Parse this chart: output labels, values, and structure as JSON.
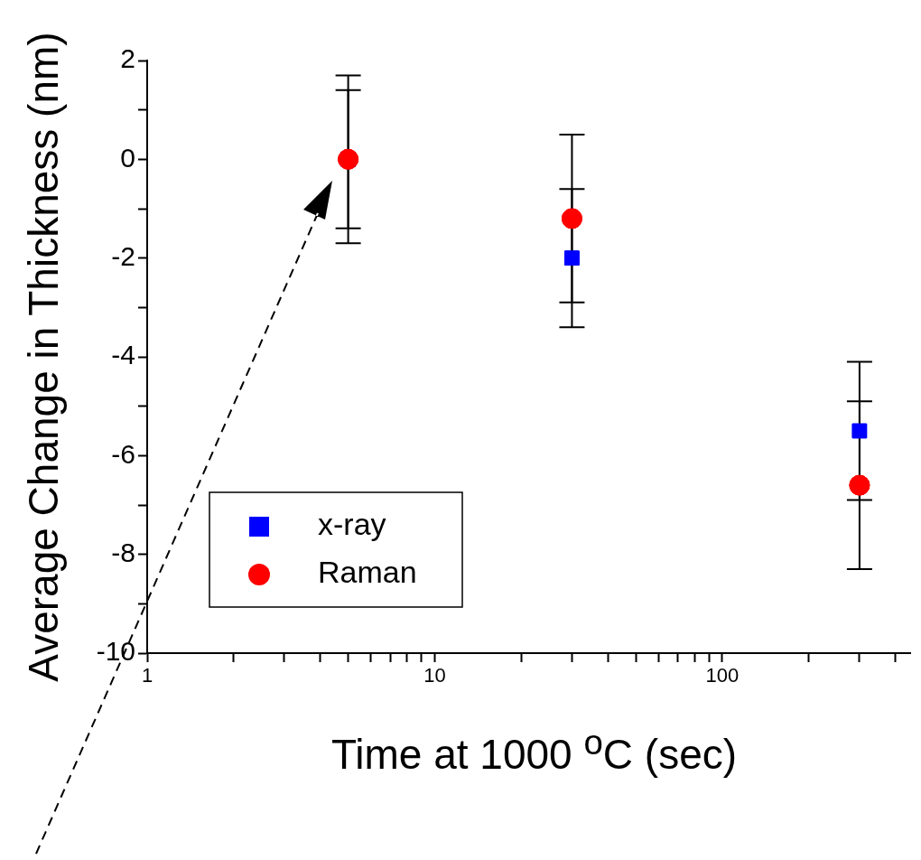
{
  "chart_data": {
    "type": "scatter",
    "xlabel": "Time at 1000 $^{o}$C (sec)",
    "ylabel": "Average Change in Thickness (nm)",
    "log": "x",
    "xlim": [
      1,
      450
    ],
    "xticks": [
      1,
      {
        "value": 2,
        "label": null
      },
      {
        "value": 3,
        "label": null
      },
      {
        "value": 4,
        "label": null
      },
      {
        "value": 5,
        "label": null
      },
      {
        "value": 6,
        "label": null
      },
      {
        "value": 7,
        "label": null
      },
      {
        "value": 8,
        "label": null
      },
      {
        "value": 9,
        "label": null
      },
      10,
      {
        "value": 20,
        "label": null
      },
      {
        "value": 30,
        "label": null
      },
      {
        "value": 40,
        "label": null
      },
      {
        "value": 50,
        "label": null
      },
      {
        "value": 60,
        "label": null
      },
      {
        "value": 70,
        "label": null
      },
      {
        "value": 80,
        "label": null
      },
      {
        "value": 90,
        "label": null
      },
      100,
      {
        "value": 200,
        "label": null
      },
      {
        "value": 300,
        "label": null
      },
      {
        "value": 400,
        "label": null
      }
    ],
    "ylim": [
      -10,
      2
    ],
    "yticks": [
      -10,
      {
        "value": -9,
        "label": null
      },
      -8,
      {
        "value": -7,
        "label": null
      },
      -6,
      {
        "value": -5,
        "label": null
      },
      -4,
      {
        "value": -3,
        "label": null
      },
      -2,
      {
        "value": -1,
        "label": null
      },
      0,
      {
        "value": 1,
        "label": null
      },
      2
    ],
    "grid": false,
    "legend": "bottom left",
    "series": [
      {
        "name": "x-ray",
        "color": "#0000ff",
        "marker": "square",
        "x": [
          5,
          30,
          300
        ],
        "values": [
          0,
          -2,
          -5.5
        ],
        "errors": [
          1.4,
          1.4,
          1.4
        ]
      },
      {
        "name": "Raman",
        "color": "#ff0000",
        "marker": "circle",
        "x": [
          5,
          30,
          300
        ],
        "values": [
          0,
          -1.2,
          -6.6
        ],
        "errors": [
          1.7,
          1.7,
          1.7
        ]
      }
    ]
  }
}
